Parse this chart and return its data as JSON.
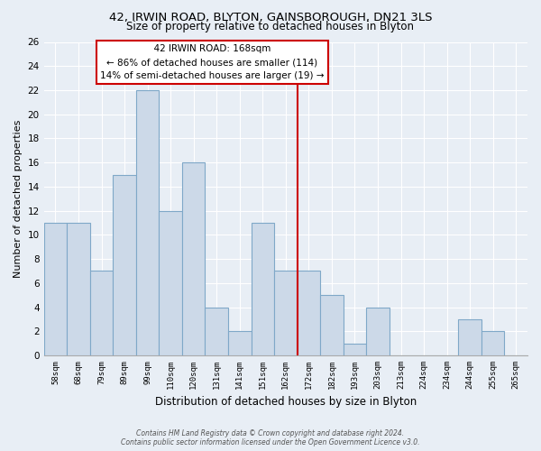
{
  "title": "42, IRWIN ROAD, BLYTON, GAINSBOROUGH, DN21 3LS",
  "subtitle": "Size of property relative to detached houses in Blyton",
  "xlabel": "Distribution of detached houses by size in Blyton",
  "ylabel": "Number of detached properties",
  "bins": [
    "58sqm",
    "68sqm",
    "79sqm",
    "89sqm",
    "99sqm",
    "110sqm",
    "120sqm",
    "131sqm",
    "141sqm",
    "151sqm",
    "162sqm",
    "172sqm",
    "182sqm",
    "193sqm",
    "203sqm",
    "213sqm",
    "224sqm",
    "234sqm",
    "244sqm",
    "255sqm",
    "265sqm"
  ],
  "values": [
    11,
    11,
    7,
    15,
    22,
    12,
    16,
    4,
    2,
    11,
    7,
    7,
    5,
    1,
    4,
    0,
    0,
    0,
    3,
    2,
    0
  ],
  "bar_color": "#ccd9e8",
  "bar_edge_color": "#7fa8c8",
  "property_line_x": 11,
  "property_line_color": "#cc0000",
  "annotation_title": "42 IRWIN ROAD: 168sqm",
  "annotation_line1": "← 86% of detached houses are smaller (114)",
  "annotation_line2": "14% of semi-detached houses are larger (19) →",
  "annotation_box_color": "#ffffff",
  "annotation_box_edge": "#cc0000",
  "ylim": [
    0,
    26
  ],
  "yticks": [
    0,
    2,
    4,
    6,
    8,
    10,
    12,
    14,
    16,
    18,
    20,
    22,
    24,
    26
  ],
  "footer_line1": "Contains HM Land Registry data © Crown copyright and database right 2024.",
  "footer_line2": "Contains public sector information licensed under the Open Government Licence v3.0.",
  "bg_color": "#e8eef5",
  "grid_color": "#ffffff"
}
